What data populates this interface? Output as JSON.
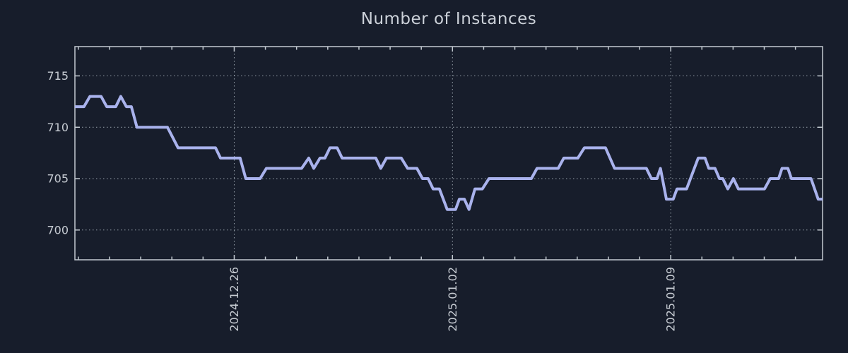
{
  "colors": {
    "background": "#171d2b",
    "line": "#a9b2ec",
    "axis": "#c3cad1",
    "grid": "#97a1ab",
    "tick_label": "#c6cbd2",
    "title": "#ccd1d9"
  },
  "chart_data": {
    "type": "line",
    "title": "Number of Instances",
    "xlabel": "",
    "ylabel": "",
    "legend": null,
    "grid": "dotted gridlines at labeled ticks only, full box border with inward ticks",
    "x_unit": "days relative to 2024.12.26",
    "xlim": [
      -5.11,
      18.87
    ],
    "ylim": [
      697.1,
      717.85
    ],
    "xticks": {
      "major": [
        {
          "pos": 0,
          "label": "2024.12.26"
        },
        {
          "pos": 7,
          "label": "2025.01.02"
        },
        {
          "pos": 14,
          "label": "2025.01.09"
        }
      ],
      "minor": {
        "start": -5,
        "end": 18,
        "step": 1
      }
    },
    "yticks": [
      {
        "pos": 700,
        "label": "700"
      },
      {
        "pos": 705,
        "label": "705"
      },
      {
        "pos": 710,
        "label": "710"
      },
      {
        "pos": 715,
        "label": "715"
      }
    ],
    "series": [
      {
        "name": "instances",
        "points": [
          [
            -5.11,
            712
          ],
          [
            -4.82,
            712
          ],
          [
            -4.63,
            713
          ],
          [
            -4.27,
            713
          ],
          [
            -4.09,
            712
          ],
          [
            -3.8,
            712
          ],
          [
            -3.64,
            713
          ],
          [
            -3.46,
            712
          ],
          [
            -3.3,
            712
          ],
          [
            -3.12,
            710
          ],
          [
            -2.14,
            710
          ],
          [
            -1.8,
            708
          ],
          [
            -0.6,
            708
          ],
          [
            -0.44,
            707
          ],
          [
            0.19,
            707
          ],
          [
            0.37,
            705
          ],
          [
            0.83,
            705
          ],
          [
            1.03,
            706
          ],
          [
            2.16,
            706
          ],
          [
            2.39,
            707
          ],
          [
            2.55,
            706
          ],
          [
            2.75,
            707
          ],
          [
            2.91,
            707
          ],
          [
            3.07,
            708
          ],
          [
            3.3,
            708
          ],
          [
            3.46,
            707
          ],
          [
            4.54,
            707
          ],
          [
            4.7,
            706
          ],
          [
            4.88,
            707
          ],
          [
            5.36,
            707
          ],
          [
            5.56,
            706
          ],
          [
            5.86,
            706
          ],
          [
            6.04,
            705
          ],
          [
            6.22,
            705
          ],
          [
            6.38,
            704
          ],
          [
            6.58,
            704
          ],
          [
            6.83,
            702
          ],
          [
            7.1,
            702
          ],
          [
            7.22,
            703
          ],
          [
            7.38,
            703
          ],
          [
            7.53,
            702
          ],
          [
            7.72,
            704
          ],
          [
            7.96,
            704
          ],
          [
            8.17,
            705
          ],
          [
            9.53,
            705
          ],
          [
            9.71,
            706
          ],
          [
            10.39,
            706
          ],
          [
            10.57,
            707
          ],
          [
            11.02,
            707
          ],
          [
            11.23,
            708
          ],
          [
            11.91,
            708
          ],
          [
            12.2,
            706
          ],
          [
            13.22,
            706
          ],
          [
            13.38,
            705
          ],
          [
            13.56,
            705
          ],
          [
            13.67,
            706
          ],
          [
            13.86,
            703
          ],
          [
            14.08,
            703
          ],
          [
            14.2,
            704
          ],
          [
            14.51,
            704
          ],
          [
            14.88,
            707
          ],
          [
            15.1,
            707
          ],
          [
            15.22,
            706
          ],
          [
            15.42,
            706
          ],
          [
            15.56,
            705
          ],
          [
            15.67,
            705
          ],
          [
            15.83,
            704
          ],
          [
            16.01,
            705
          ],
          [
            16.17,
            704
          ],
          [
            17.01,
            704
          ],
          [
            17.19,
            705
          ],
          [
            17.46,
            705
          ],
          [
            17.57,
            706
          ],
          [
            17.76,
            706
          ],
          [
            17.87,
            705
          ],
          [
            18.5,
            705
          ],
          [
            18.73,
            703
          ],
          [
            18.87,
            703
          ]
        ]
      }
    ]
  }
}
